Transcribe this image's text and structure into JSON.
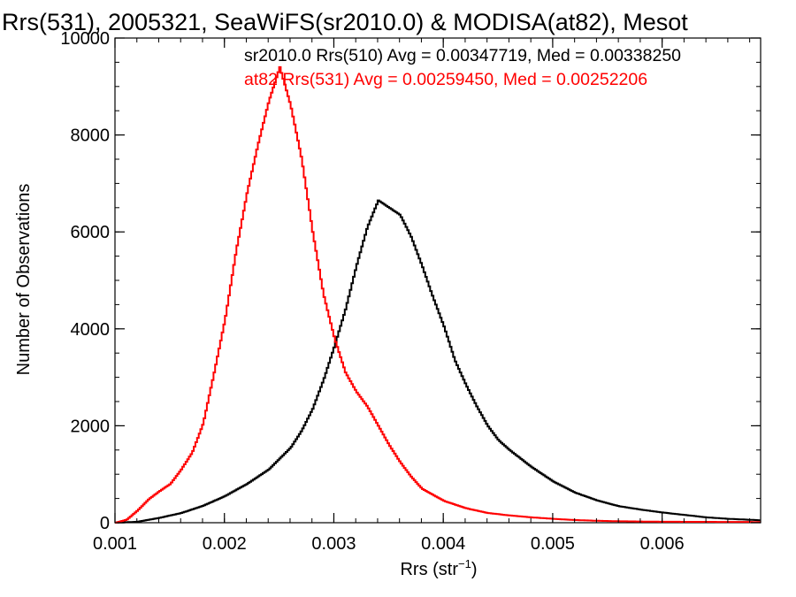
{
  "chart_data": {
    "type": "line",
    "title": "Rrs(531), 2005321, SeaWiFS(sr2010.0) & MODISA(at82), Mesot",
    "xlabel_main": "Rrs (str",
    "xlabel_sup": "−1",
    "xlabel_end": ")",
    "ylabel": "Number of Observations",
    "xlim": [
      0.001,
      0.0069
    ],
    "ylim": [
      0,
      10000
    ],
    "xticks": [
      0.001,
      0.002,
      0.003,
      0.004,
      0.005,
      0.006
    ],
    "xtick_labels": [
      "0.001",
      "0.002",
      "0.003",
      "0.004",
      "0.005",
      "0.006"
    ],
    "yticks": [
      0,
      2000,
      4000,
      6000,
      8000,
      10000
    ],
    "ytick_labels": [
      "0",
      "2000",
      "4000",
      "6000",
      "8000",
      "10000"
    ],
    "grid": false,
    "series": [
      {
        "legend": "sr2010.0 Rrs(510) Avg = 0.00347719, Med = 0.00338250",
        "color": "#000000",
        "x": [
          0.001,
          0.0012,
          0.0014,
          0.0016,
          0.0018,
          0.002,
          0.0022,
          0.0024,
          0.0026,
          0.0027,
          0.0028,
          0.0029,
          0.003,
          0.0031,
          0.0032,
          0.0033,
          0.0034,
          0.0035,
          0.0036,
          0.0037,
          0.0038,
          0.0039,
          0.004,
          0.0041,
          0.0042,
          0.0043,
          0.0044,
          0.0045,
          0.0046,
          0.0048,
          0.005,
          0.0052,
          0.0054,
          0.0056,
          0.0058,
          0.006,
          0.0062,
          0.0064,
          0.0066,
          0.0069
        ],
        "y": [
          0,
          20,
          100,
          200,
          350,
          550,
          800,
          1100,
          1550,
          1900,
          2350,
          2950,
          3650,
          4400,
          5300,
          6100,
          6650,
          6500,
          6350,
          5900,
          5300,
          4650,
          4050,
          3350,
          2850,
          2400,
          2000,
          1700,
          1500,
          1150,
          850,
          620,
          460,
          340,
          270,
          210,
          160,
          110,
          80,
          50
        ]
      },
      {
        "legend": "at82 Rrs(531) Avg = 0.00259450, Med = 0.00252206",
        "color": "#ff0000",
        "x": [
          0.001,
          0.0011,
          0.0012,
          0.0013,
          0.0014,
          0.0015,
          0.0016,
          0.0017,
          0.0018,
          0.0019,
          0.002,
          0.0021,
          0.0022,
          0.0023,
          0.0024,
          0.0025,
          0.0026,
          0.0027,
          0.0028,
          0.0029,
          0.003,
          0.0031,
          0.0032,
          0.0033,
          0.0034,
          0.0035,
          0.0036,
          0.0037,
          0.0038,
          0.004,
          0.0042,
          0.0044,
          0.0046,
          0.0048,
          0.005,
          0.0052,
          0.0054,
          0.0056,
          0.006,
          0.0069
        ],
        "y": [
          0,
          60,
          250,
          480,
          650,
          800,
          1100,
          1450,
          2050,
          3100,
          4200,
          5600,
          6800,
          7800,
          8700,
          9400,
          8600,
          7500,
          6000,
          4700,
          3800,
          3100,
          2700,
          2400,
          2000,
          1600,
          1250,
          950,
          700,
          450,
          300,
          200,
          150,
          110,
          80,
          55,
          40,
          30,
          20,
          15
        ]
      }
    ]
  }
}
